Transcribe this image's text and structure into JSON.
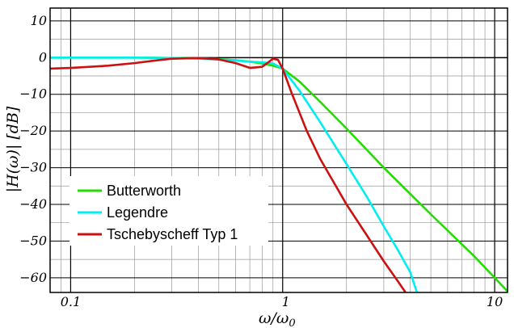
{
  "chart_data": {
    "type": "line",
    "xscale": "log",
    "xlim": [
      0.08,
      11.5
    ],
    "ylim": [
      -64,
      13.5
    ],
    "xlabel": "ω/ω",
    "xlabel_sub": "0",
    "ylabel": "|H(ω)| [dB]",
    "grid": true,
    "legend_position": "bottom-left",
    "y_ticks": [
      {
        "value": 10,
        "label": "10"
      },
      {
        "value": 0,
        "label": "0"
      },
      {
        "value": -10,
        "label": "−10"
      },
      {
        "value": -20,
        "label": "−20"
      },
      {
        "value": -30,
        "label": "−30"
      },
      {
        "value": -40,
        "label": "−40"
      },
      {
        "value": -50,
        "label": "−50"
      },
      {
        "value": -60,
        "label": "−60"
      }
    ],
    "x_ticks": [
      {
        "value": 0.1,
        "label": "0.1"
      },
      {
        "value": 1,
        "label": "1"
      },
      {
        "value": 10,
        "label": "10"
      }
    ],
    "series": [
      {
        "name": "Butterworth",
        "color": "#22dd00",
        "x": [
          0.08,
          0.1,
          0.2,
          0.3,
          0.4,
          0.5,
          0.6,
          0.7,
          0.8,
          0.9,
          1.0,
          1.2,
          1.5,
          2.0,
          3.0,
          5.0,
          8.0,
          11.5
        ],
        "y": [
          0,
          0,
          0,
          -0.1,
          -0.2,
          -0.4,
          -0.7,
          -1.1,
          -1.6,
          -2.2,
          -3.0,
          -6.5,
          -12.0,
          -19.3,
          -30.0,
          -42.7,
          -54.1,
          -63.7
        ]
      },
      {
        "name": "Legendre",
        "color": "#00eeee",
        "x": [
          0.08,
          0.1,
          0.2,
          0.3,
          0.4,
          0.5,
          0.6,
          0.7,
          0.8,
          0.9,
          1.0,
          1.2,
          1.5,
          2.0,
          2.5,
          3.0,
          3.5,
          4.0,
          4.3
        ],
        "y": [
          0,
          0,
          0,
          -0.1,
          -0.3,
          -0.5,
          -0.8,
          -1.1,
          -1.3,
          -1.6,
          -3.0,
          -9.0,
          -17.5,
          -29.0,
          -38.0,
          -46.0,
          -52.5,
          -58.5,
          -64
        ]
      },
      {
        "name": "Tschebyscheff Typ 1",
        "color": "#cc1111",
        "x": [
          0.08,
          0.1,
          0.15,
          0.2,
          0.25,
          0.3,
          0.4,
          0.5,
          0.6,
          0.7,
          0.8,
          0.85,
          0.9,
          0.95,
          1.0,
          1.1,
          1.3,
          1.5,
          2.0,
          2.5,
          3.0,
          3.5,
          3.8
        ],
        "y": [
          -3,
          -2.8,
          -2.2,
          -1.5,
          -0.8,
          -0.3,
          -0.1,
          -0.5,
          -1.5,
          -2.8,
          -2.5,
          -1.4,
          -0.3,
          -0.6,
          -3.0,
          -9.5,
          -20.0,
          -27.5,
          -40.0,
          -48.5,
          -55.5,
          -61.0,
          -64
        ]
      }
    ]
  }
}
